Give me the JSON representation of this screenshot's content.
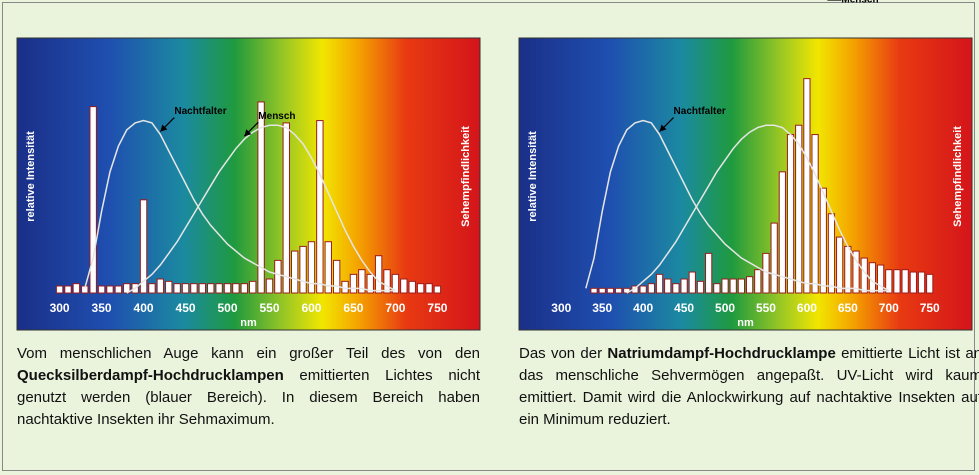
{
  "chart_data": [
    {
      "type": "bar",
      "x": [
        300,
        310,
        320,
        330,
        340,
        350,
        360,
        370,
        380,
        390,
        400,
        410,
        420,
        430,
        440,
        450,
        460,
        470,
        480,
        490,
        500,
        510,
        520,
        530,
        540,
        550,
        560,
        570,
        580,
        590,
        600,
        610,
        620,
        630,
        640,
        650,
        660,
        670,
        680,
        690,
        700,
        710,
        720,
        730,
        740,
        750
      ],
      "values": [
        3,
        3,
        4,
        3,
        80,
        3,
        3,
        3,
        4,
        4,
        40,
        4,
        6,
        5,
        4,
        4,
        4,
        4,
        4,
        4,
        4,
        4,
        4,
        5,
        82,
        6,
        14,
        73,
        18,
        20,
        22,
        74,
        22,
        14,
        5,
        8,
        10,
        8,
        16,
        10,
        8,
        6,
        5,
        4,
        4,
        3
      ],
      "color": "#9b1b1b",
      "xlim": [
        285,
        765
      ],
      "ylim": [
        0,
        100
      ],
      "xticks": [
        300,
        350,
        400,
        450,
        500,
        550,
        600,
        650,
        700,
        750
      ],
      "xlabel": "nm",
      "ylabel": "relative Intensität",
      "y2label": "Sehempfindlichkeit",
      "series": [
        {
          "name": "Nachtfalter",
          "type": "line",
          "color": "#e6e6e6",
          "values": [
            null,
            null,
            null,
            2,
            15,
            35,
            52,
            63,
            70,
            73,
            74,
            73,
            68,
            61,
            54,
            47,
            40,
            34,
            29,
            25,
            21,
            18,
            15,
            13,
            11,
            9,
            8,
            7,
            6,
            5,
            4,
            4,
            3,
            3,
            2,
            2,
            2,
            1,
            1,
            1,
            1,
            null,
            null,
            null,
            null,
            null
          ]
        },
        {
          "name": "Mensch",
          "type": "line",
          "color": "#e6e6e6",
          "values": [
            null,
            null,
            null,
            null,
            null,
            null,
            null,
            null,
            0,
            2,
            5,
            8,
            12,
            17,
            22,
            28,
            34,
            40,
            46,
            52,
            57,
            62,
            66,
            69,
            71,
            72,
            72,
            71,
            68,
            64,
            58,
            51,
            43,
            35,
            27,
            20,
            14,
            9,
            5,
            3,
            1,
            null,
            null,
            null,
            null,
            null
          ]
        }
      ],
      "caption": [
        "Vom menschlichen Auge kann ein großer Teil des von den",
        "Quecksilberdampf-Hochdrucklampen",
        "emittierten Lichtes nicht genutzt werden (blauer Bereich). In diesem Bereich haben nachtaktive Insekten ihr Sehmaximum."
      ]
    },
    {
      "type": "bar",
      "x": [
        300,
        310,
        320,
        330,
        340,
        350,
        360,
        370,
        380,
        390,
        400,
        410,
        420,
        430,
        440,
        450,
        460,
        470,
        480,
        490,
        500,
        510,
        520,
        530,
        540,
        550,
        560,
        570,
        580,
        590,
        600,
        610,
        620,
        630,
        640,
        650,
        660,
        670,
        680,
        690,
        700,
        710,
        720,
        730,
        740,
        750
      ],
      "values": [
        0,
        0,
        0,
        0,
        2,
        2,
        2,
        2,
        2,
        3,
        3,
        4,
        8,
        6,
        4,
        6,
        9,
        5,
        17,
        4,
        6,
        6,
        6,
        7,
        10,
        17,
        30,
        52,
        68,
        72,
        92,
        68,
        45,
        34,
        24,
        20,
        18,
        15,
        13,
        12,
        10,
        10,
        10,
        9,
        9,
        8
      ],
      "color": "#9b1b1b",
      "xlim": [
        285,
        765
      ],
      "ylim": [
        0,
        100
      ],
      "xticks": [
        300,
        350,
        400,
        450,
        500,
        550,
        600,
        650,
        700,
        750
      ],
      "xlabel": "nm",
      "ylabel": "relative Intensität",
      "y2label": "Sehempfindlichkeit",
      "series": [
        {
          "name": "Nachtfalter",
          "type": "line",
          "color": "#e6e6e6",
          "values": [
            null,
            null,
            null,
            2,
            15,
            35,
            52,
            63,
            70,
            73,
            74,
            73,
            68,
            61,
            54,
            47,
            40,
            34,
            29,
            25,
            21,
            18,
            15,
            13,
            11,
            9,
            8,
            7,
            6,
            5,
            4,
            4,
            3,
            3,
            2,
            2,
            2,
            1,
            1,
            1,
            1,
            null,
            null,
            null,
            null,
            null
          ]
        },
        {
          "name": "Mensch",
          "type": "line",
          "color": "#e6e6e6",
          "values": [
            null,
            null,
            null,
            null,
            null,
            null,
            null,
            null,
            0,
            2,
            5,
            8,
            12,
            17,
            22,
            28,
            34,
            40,
            46,
            52,
            57,
            62,
            66,
            69,
            71,
            72,
            72,
            71,
            68,
            64,
            58,
            51,
            43,
            35,
            27,
            20,
            14,
            9,
            5,
            3,
            1,
            null,
            null,
            null,
            null,
            null
          ]
        }
      ],
      "caption": [
        "Das von der",
        "Natriumdampf-Hochdrucklampe",
        "emittierte Licht ist an das menschliche Sehvermögen angepaßt. UV-Licht wird kaum emittiert. Damit wird die Anlockwirkung auf nachtaktive Insekten auf ein Minimum reduziert."
      ]
    }
  ]
}
